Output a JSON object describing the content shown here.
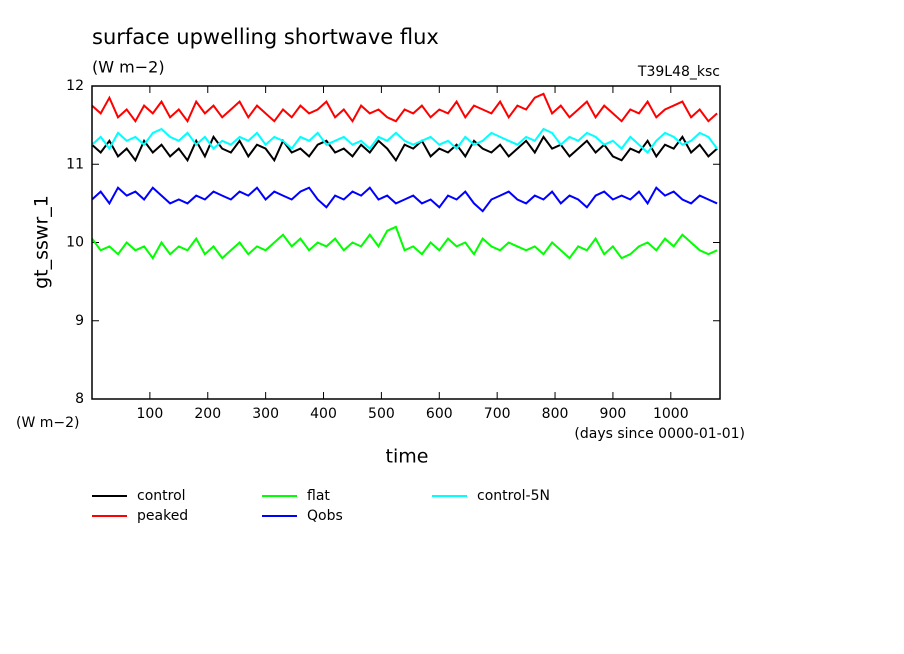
{
  "chart_data": {
    "type": "line",
    "title": "surface upwelling shortwave flux",
    "subtitle": "(W m−2)",
    "annotation": "T39L48_ksc",
    "y_label": "gt_sswr_1",
    "y_unit": "(W m−2)",
    "x_label": "time",
    "x_unit": "(days since 0000-01-01)",
    "x": [
      0,
      15,
      30,
      45,
      60,
      75,
      90,
      105,
      120,
      135,
      150,
      165,
      180,
      195,
      210,
      225,
      240,
      255,
      270,
      285,
      300,
      315,
      330,
      345,
      360,
      375,
      390,
      405,
      420,
      435,
      450,
      465,
      480,
      495,
      510,
      525,
      540,
      555,
      570,
      585,
      600,
      615,
      630,
      645,
      660,
      675,
      690,
      705,
      720,
      735,
      750,
      765,
      780,
      795,
      810,
      825,
      840,
      855,
      870,
      885,
      900,
      915,
      930,
      945,
      960,
      975,
      990,
      1005,
      1020,
      1035,
      1050,
      1065,
      1080
    ],
    "xlim": [
      0,
      1085
    ],
    "xticks": [
      100,
      200,
      300,
      400,
      500,
      600,
      700,
      800,
      900,
      1000
    ],
    "ylim": [
      8,
      12
    ],
    "yticks": [
      8,
      9,
      10,
      11,
      12
    ],
    "series": [
      {
        "name": "control",
        "color": "#000000",
        "values": [
          11.25,
          11.15,
          11.3,
          11.1,
          11.2,
          11.05,
          11.3,
          11.15,
          11.25,
          11.1,
          11.2,
          11.05,
          11.3,
          11.1,
          11.35,
          11.2,
          11.15,
          11.3,
          11.1,
          11.25,
          11.2,
          11.05,
          11.3,
          11.15,
          11.2,
          11.1,
          11.25,
          11.3,
          11.15,
          11.2,
          11.1,
          11.25,
          11.15,
          11.3,
          11.2,
          11.05,
          11.25,
          11.2,
          11.3,
          11.1,
          11.2,
          11.15,
          11.25,
          11.1,
          11.3,
          11.2,
          11.15,
          11.25,
          11.1,
          11.2,
          11.3,
          11.15,
          11.35,
          11.2,
          11.25,
          11.1,
          11.2,
          11.3,
          11.15,
          11.25,
          11.1,
          11.05,
          11.2,
          11.15,
          11.3,
          11.1,
          11.25,
          11.2,
          11.35,
          11.15,
          11.25,
          11.1,
          11.2
        ]
      },
      {
        "name": "peaked",
        "color": "#ff0000",
        "values": [
          11.75,
          11.65,
          11.85,
          11.6,
          11.7,
          11.55,
          11.75,
          11.65,
          11.8,
          11.6,
          11.7,
          11.55,
          11.8,
          11.65,
          11.75,
          11.6,
          11.7,
          11.8,
          11.6,
          11.75,
          11.65,
          11.55,
          11.7,
          11.6,
          11.75,
          11.65,
          11.7,
          11.8,
          11.6,
          11.7,
          11.55,
          11.75,
          11.65,
          11.7,
          11.6,
          11.55,
          11.7,
          11.65,
          11.75,
          11.6,
          11.7,
          11.65,
          11.8,
          11.6,
          11.75,
          11.7,
          11.65,
          11.8,
          11.6,
          11.75,
          11.7,
          11.85,
          11.9,
          11.65,
          11.75,
          11.6,
          11.7,
          11.8,
          11.6,
          11.75,
          11.65,
          11.55,
          11.7,
          11.65,
          11.8,
          11.6,
          11.7,
          11.75,
          11.8,
          11.6,
          11.7,
          11.55,
          11.65
        ]
      },
      {
        "name": "flat",
        "color": "#00ff00",
        "values": [
          10.05,
          9.9,
          9.95,
          9.85,
          10.0,
          9.9,
          9.95,
          9.8,
          10.0,
          9.85,
          9.95,
          9.9,
          10.05,
          9.85,
          9.95,
          9.8,
          9.9,
          10.0,
          9.85,
          9.95,
          9.9,
          10.0,
          10.1,
          9.95,
          10.05,
          9.9,
          10.0,
          9.95,
          10.05,
          9.9,
          10.0,
          9.95,
          10.1,
          9.95,
          10.15,
          10.2,
          9.9,
          9.95,
          9.85,
          10.0,
          9.9,
          10.05,
          9.95,
          10.0,
          9.85,
          10.05,
          9.95,
          9.9,
          10.0,
          9.95,
          9.9,
          9.95,
          9.85,
          10.0,
          9.9,
          9.8,
          9.95,
          9.9,
          10.05,
          9.85,
          9.95,
          9.8,
          9.85,
          9.95,
          10.0,
          9.9,
          10.05,
          9.95,
          10.1,
          10.0,
          9.9,
          9.85,
          9.9
        ]
      },
      {
        "name": "Qobs",
        "color": "#0000ff",
        "values": [
          10.55,
          10.65,
          10.5,
          10.7,
          10.6,
          10.65,
          10.55,
          10.7,
          10.6,
          10.5,
          10.55,
          10.5,
          10.6,
          10.55,
          10.65,
          10.6,
          10.55,
          10.65,
          10.6,
          10.7,
          10.55,
          10.65,
          10.6,
          10.55,
          10.65,
          10.7,
          10.55,
          10.45,
          10.6,
          10.55,
          10.65,
          10.6,
          10.7,
          10.55,
          10.6,
          10.5,
          10.55,
          10.6,
          10.5,
          10.55,
          10.45,
          10.6,
          10.55,
          10.65,
          10.5,
          10.4,
          10.55,
          10.6,
          10.65,
          10.55,
          10.5,
          10.6,
          10.55,
          10.65,
          10.5,
          10.6,
          10.55,
          10.45,
          10.6,
          10.65,
          10.55,
          10.6,
          10.55,
          10.65,
          10.5,
          10.7,
          10.6,
          10.65,
          10.55,
          10.5,
          10.6,
          10.55,
          10.5
        ]
      },
      {
        "name": "control-5N",
        "color": "#00ffff",
        "values": [
          11.25,
          11.35,
          11.2,
          11.4,
          11.3,
          11.35,
          11.25,
          11.4,
          11.45,
          11.35,
          11.3,
          11.4,
          11.25,
          11.35,
          11.2,
          11.3,
          11.25,
          11.35,
          11.3,
          11.4,
          11.25,
          11.35,
          11.3,
          11.2,
          11.35,
          11.3,
          11.4,
          11.25,
          11.3,
          11.35,
          11.25,
          11.3,
          11.2,
          11.35,
          11.3,
          11.4,
          11.3,
          11.25,
          11.3,
          11.35,
          11.25,
          11.3,
          11.2,
          11.35,
          11.25,
          11.3,
          11.4,
          11.35,
          11.3,
          11.25,
          11.35,
          11.3,
          11.45,
          11.4,
          11.25,
          11.35,
          11.3,
          11.4,
          11.35,
          11.25,
          11.3,
          11.2,
          11.35,
          11.25,
          11.15,
          11.3,
          11.4,
          11.35,
          11.25,
          11.3,
          11.4,
          11.35,
          11.2
        ]
      }
    ]
  }
}
